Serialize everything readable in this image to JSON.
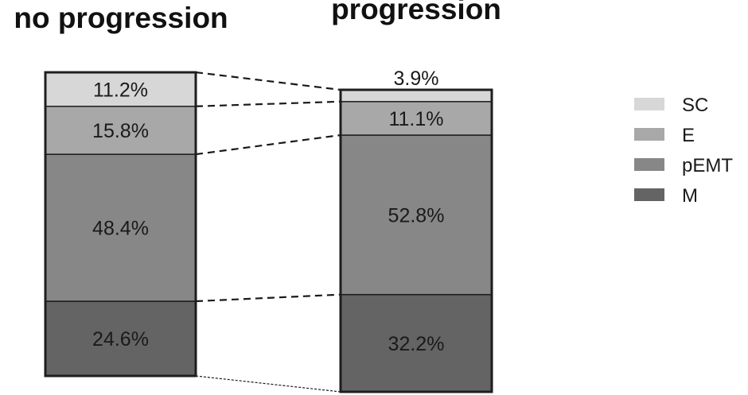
{
  "chart_data": {
    "type": "bar",
    "stacked": true,
    "percent": true,
    "categories": [
      "no progression",
      "progression"
    ],
    "series": [
      {
        "name": "M",
        "values": [
          24.6,
          32.2
        ],
        "labels": [
          "24.6%",
          "32.2%"
        ],
        "color": "#646464"
      },
      {
        "name": "pEMT",
        "values": [
          48.4,
          52.8
        ],
        "labels": [
          "48.4%",
          "52.8%"
        ],
        "color": "#878787"
      },
      {
        "name": "E",
        "values": [
          15.8,
          11.1
        ],
        "labels": [
          "15.8%",
          "11.1%"
        ],
        "color": "#a8a8a8"
      },
      {
        "name": "SC",
        "values": [
          11.2,
          3.9
        ],
        "labels": [
          "11.2%",
          "3.9%"
        ],
        "color": "#d7d7d7"
      }
    ],
    "legend": {
      "placement": "right",
      "order": [
        "SC",
        "E",
        "pEMT",
        "M"
      ]
    },
    "grid": false
  }
}
